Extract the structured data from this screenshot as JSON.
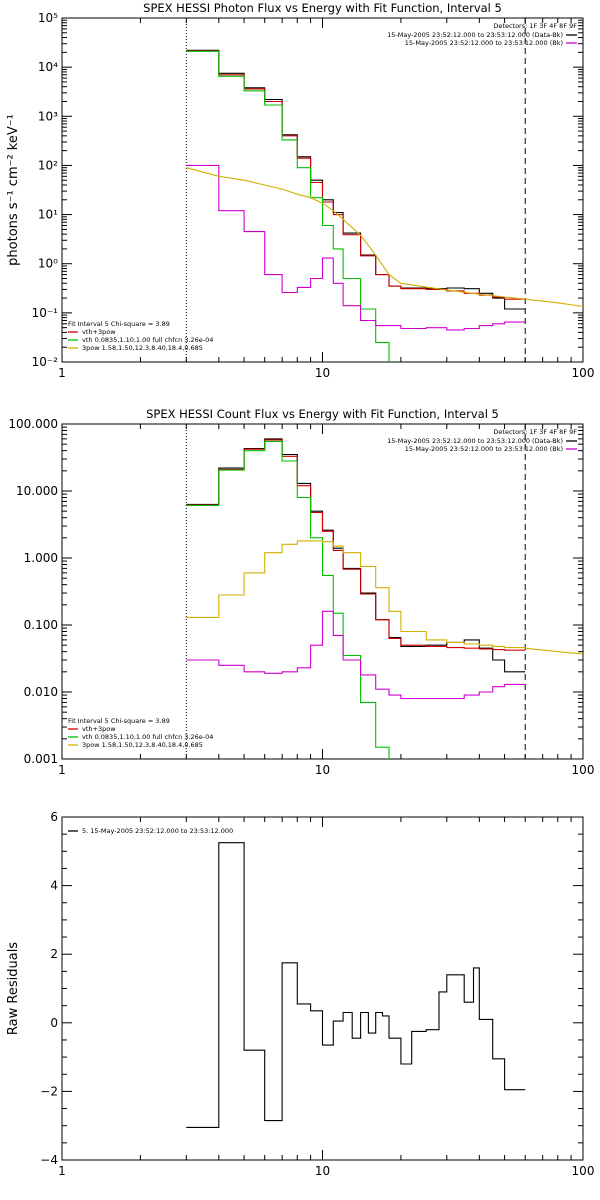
{
  "chart_data": [
    {
      "type": "line",
      "title": "SPEX HESSI Photon Flux vs Energy with Fit Function, Interval 5",
      "xlabel": "",
      "ylabel": "photons s⁻¹ cm⁻² keV⁻¹",
      "xscale": "log",
      "yscale": "log",
      "xlim": [
        1,
        100
      ],
      "ylim": [
        0.01,
        100000
      ],
      "xticks": [
        "1",
        "10",
        "100"
      ],
      "yticks": [
        "10⁻²",
        "10⁻¹",
        "10⁰",
        "10¹",
        "10²",
        "10³",
        "10⁴",
        "10⁵"
      ],
      "vlines": [
        {
          "x": 3,
          "style": "dotted"
        },
        {
          "x": 60,
          "style": "dashed"
        }
      ],
      "legend_right": {
        "header": "Detectors: 1F 3F 4F 8F 9F",
        "entries": [
          {
            "text": "15-May-2005 23:52:12.000 to 23:53:12.000 (Data-Bk)",
            "color": "#000000"
          },
          {
            "text": "15-May-2005 23:52:12.000 to 23:53:12.000 (Bk)",
            "color": "#d000d0"
          }
        ]
      },
      "legend_left": {
        "header": "Fit Interval 5   Chi-square = 3.89",
        "entries": [
          {
            "text": "vth+3pow",
            "color": "#d00000"
          },
          {
            "text": "vth 0.0835,1.10,1.00  full chfcn 3.26e-04",
            "color": "#00c000"
          },
          {
            "text": "3pow 1.58,1.50,12.3,8.40,18.4,0.685",
            "color": "#d0b000"
          }
        ]
      },
      "edges": [
        3,
        4,
        5,
        6,
        7,
        8,
        9,
        10,
        11,
        12,
        14,
        16,
        18,
        20,
        25,
        30,
        35,
        40,
        45,
        50,
        60
      ],
      "series": [
        {
          "name": "Data-Bk",
          "color": "#000000",
          "step": true,
          "values": [
            22000,
            7500,
            3800,
            2200,
            420,
            150,
            50,
            20,
            11,
            4.2,
            1.5,
            0.6,
            0.35,
            0.32,
            0.31,
            0.32,
            0.31,
            0.25,
            0.2,
            0.12
          ]
        },
        {
          "name": "vth+3pow",
          "color": "#d00000",
          "step": true,
          "values": [
            21500,
            7000,
            3600,
            2000,
            400,
            140,
            45,
            18,
            10,
            3.9,
            1.45,
            0.6,
            0.35,
            0.31,
            0.3,
            0.28,
            0.25,
            0.23,
            0.21,
            0.19
          ]
        },
        {
          "name": "vth",
          "color": "#00c000",
          "step": true,
          "values": [
            21000,
            6500,
            3300,
            1700,
            330,
            90,
            22,
            6,
            2,
            0.5,
            0.12,
            0.025,
            0.005
          ]
        },
        {
          "name": "Bk",
          "color": "#d000d0",
          "step": true,
          "values": [
            100,
            12,
            4.5,
            0.6,
            0.26,
            0.33,
            0.5,
            1.3,
            0.4,
            0.14,
            0.07,
            0.055,
            0.055,
            0.048,
            0.05,
            0.045,
            0.048,
            0.055,
            0.06,
            0.065
          ]
        },
        {
          "name": "3pow",
          "color": "#d0b000",
          "step": false,
          "points": [
            [
              3,
              90
            ],
            [
              4,
              60
            ],
            [
              5,
              50
            ],
            [
              6,
              40
            ],
            [
              7,
              33
            ],
            [
              8,
              26
            ],
            [
              9,
              22
            ],
            [
              10,
              17
            ],
            [
              11,
              12
            ],
            [
              12,
              8
            ],
            [
              14,
              3.8
            ],
            [
              16,
              1.5
            ],
            [
              18,
              0.6
            ],
            [
              20,
              0.4
            ],
            [
              30,
              0.29
            ],
            [
              40,
              0.24
            ],
            [
              50,
              0.21
            ],
            [
              60,
              0.19
            ],
            [
              80,
              0.16
            ],
            [
              100,
              0.135
            ]
          ]
        }
      ]
    },
    {
      "type": "line",
      "title": "SPEX HESSI Count Flux vs Energy with Fit Function, Interval 5",
      "xlabel": "",
      "ylabel": "",
      "xscale": "log",
      "yscale": "log",
      "xlim": [
        1,
        100
      ],
      "ylim": [
        0.001,
        100
      ],
      "xticks": [
        "1",
        "10",
        "100"
      ],
      "yticks": [
        "0.001",
        "0.010",
        "0.100",
        "1.000",
        "10.000",
        "100.000"
      ],
      "vlines": [
        {
          "x": 3,
          "style": "dotted"
        },
        {
          "x": 60,
          "style": "dashed"
        }
      ],
      "legend_right": {
        "header": "Detectors: 1F 3F 4F 8F 9F",
        "entries": [
          {
            "text": "15-May-2005 23:52:12.000 to 23:53:12.000 (Data-Bk)",
            "color": "#000000"
          },
          {
            "text": "15-May-2005 23:52:12.000 to 23:53:12.000 (Bk)",
            "color": "#d000d0"
          }
        ]
      },
      "legend_left": {
        "header": "Fit Interval 5   Chi-square = 3.89",
        "entries": [
          {
            "text": "vth+3pow",
            "color": "#d00000"
          },
          {
            "text": "vth 0.0835,1.10,1.00  full chfcn 3.26e-04",
            "color": "#00c000"
          },
          {
            "text": "3pow 1.58,1.50,12.3,8.40,18.4,0.685",
            "color": "#d0b000"
          }
        ]
      },
      "edges": [
        3,
        4,
        5,
        6,
        7,
        8,
        9,
        10,
        11,
        12,
        14,
        16,
        18,
        20,
        25,
        30,
        35,
        40,
        45,
        50,
        60
      ],
      "series": [
        {
          "name": "Data-Bk",
          "color": "#000000",
          "step": true,
          "values": [
            6.3,
            22,
            43,
            60,
            35,
            13,
            5,
            2.6,
            1.4,
            0.7,
            0.3,
            0.12,
            0.065,
            0.048,
            0.05,
            0.055,
            0.06,
            0.045,
            0.03,
            0.02
          ]
        },
        {
          "name": "vth+3pow",
          "color": "#d00000",
          "step": true,
          "values": [
            6.2,
            21,
            42,
            58,
            33,
            12,
            4.8,
            2.5,
            1.3,
            0.68,
            0.29,
            0.12,
            0.063,
            0.05,
            0.048,
            0.046,
            0.045,
            0.044,
            0.043,
            0.042
          ]
        },
        {
          "name": "vth",
          "color": "#00c000",
          "step": true,
          "values": [
            6.1,
            20.5,
            40,
            55,
            28,
            8,
            2,
            0.55,
            0.15,
            0.035,
            0.007,
            0.0015,
            0.0003
          ]
        },
        {
          "name": "Bk",
          "color": "#d000d0",
          "step": true,
          "values": [
            0.03,
            0.025,
            0.02,
            0.019,
            0.02,
            0.023,
            0.05,
            0.16,
            0.07,
            0.03,
            0.018,
            0.011,
            0.009,
            0.008,
            0.008,
            0.008,
            0.009,
            0.01,
            0.012,
            0.013
          ]
        },
        {
          "name": "3pow",
          "color": "#d0b000",
          "step": true,
          "values": [
            0.13,
            0.28,
            0.6,
            1.2,
            1.6,
            1.8,
            1.8,
            1.75,
            1.5,
            1.2,
            0.75,
            0.36,
            0.16,
            0.08,
            0.06,
            0.055,
            0.052,
            0.05,
            0.048,
            0.046
          ],
          "tail": [
            [
              60,
              0.045
            ],
            [
              80,
              0.04
            ],
            [
              100,
              0.037
            ]
          ]
        }
      ]
    },
    {
      "type": "line",
      "title": "",
      "xlabel": "",
      "ylabel": "Raw Residuals",
      "xscale": "log",
      "yscale": "linear",
      "xlim": [
        1,
        100
      ],
      "ylim": [
        -4,
        6
      ],
      "xticks": [
        "1",
        "10",
        "100"
      ],
      "yticks": [
        "−4",
        "−2",
        "0",
        "2",
        "4",
        "6"
      ],
      "legend_left": {
        "header": "",
        "entries": [
          {
            "text": "5. 15-May-2005 23:52:12.000 to 23:53:12.000",
            "color": "#000000"
          }
        ]
      },
      "edges": [
        3,
        4,
        5,
        6,
        7,
        8,
        9,
        10,
        11,
        12,
        13,
        14,
        15,
        16,
        17,
        18,
        20,
        22,
        25,
        28,
        30,
        35,
        38,
        40,
        45,
        50,
        55,
        60
      ],
      "series": [
        {
          "name": "Residuals",
          "color": "#000000",
          "step": true,
          "values": [
            -3.05,
            5.25,
            -0.8,
            -2.85,
            1.75,
            0.55,
            0.35,
            -0.65,
            0.05,
            0.3,
            -0.45,
            0.3,
            -0.3,
            0.3,
            0.2,
            -0.45,
            -1.2,
            -0.25,
            -0.2,
            0.9,
            1.4,
            0.6,
            1.6,
            0.1,
            -1.05,
            -1.95,
            -1.95
          ]
        }
      ]
    }
  ]
}
